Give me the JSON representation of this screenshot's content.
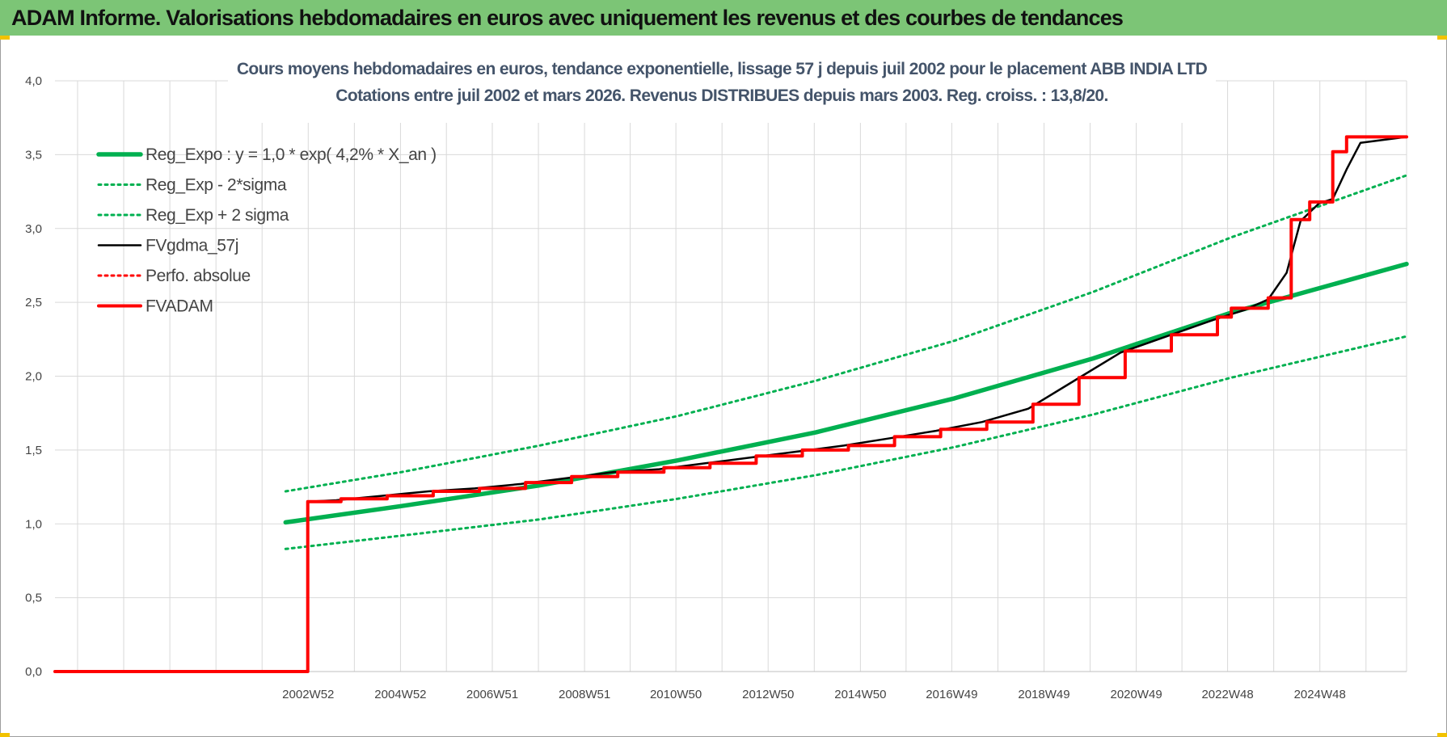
{
  "banner": {
    "title": "ADAM Informe. Valorisations hebdomadaires en euros avec uniquement les revenus et des courbes de tendances"
  },
  "colors": {
    "banner_bg": "#7cc576",
    "trend": "#00b050",
    "fvgdma": "#000000",
    "perfo": "#ff0000",
    "fvadam": "#ff0000"
  },
  "chart_data": {
    "type": "line",
    "title": "Cours moyens hebdomadaires en euros, tendance exponentielle, lissage 57 j depuis juil 2002 pour le placement ABB INDIA LTD",
    "subtitle": "Cotations entre juil 2002 et mars 2026. Revenus DISTRIBUES depuis mars 2003. Reg. croiss. : 13,8/20.",
    "xlabel": "",
    "ylabel": "",
    "ylim": [
      0,
      4
    ],
    "xlim": [
      1997.5,
      2026.8
    ],
    "y_ticks": [
      "0,0",
      "0,5",
      "1,0",
      "1,5",
      "2,0",
      "2,5",
      "3,0",
      "3,5",
      "4,0"
    ],
    "x_ticks": [
      {
        "x": 2002.99,
        "label": "2002W52"
      },
      {
        "x": 2004.99,
        "label": "2004W52"
      },
      {
        "x": 2006.98,
        "label": "2006W51"
      },
      {
        "x": 2008.98,
        "label": "2008W51"
      },
      {
        "x": 2010.96,
        "label": "2010W50"
      },
      {
        "x": 2012.96,
        "label": "2012W50"
      },
      {
        "x": 2014.96,
        "label": "2014W50"
      },
      {
        "x": 2016.94,
        "label": "2016W49"
      },
      {
        "x": 2018.94,
        "label": "2018W49"
      },
      {
        "x": 2020.94,
        "label": "2020W49"
      },
      {
        "x": 2022.92,
        "label": "2022W48"
      },
      {
        "x": 2024.92,
        "label": "2024W48"
      }
    ],
    "grid": true,
    "legend_position": "top-left",
    "series": [
      {
        "name": "Reg_Expo : y = 1,0 * exp( 4,2% *  X_an )",
        "style": "solid-thick",
        "color": "#00b050",
        "x": [
          2002.5,
          2005,
          2008,
          2011,
          2014,
          2017,
          2020,
          2023,
          2026.8
        ],
        "y": [
          1.01,
          1.12,
          1.26,
          1.43,
          1.62,
          1.85,
          2.12,
          2.43,
          2.76
        ]
      },
      {
        "name": "Reg_Exp - 2*sigma",
        "style": "dotted",
        "color": "#00b050",
        "x": [
          2002.5,
          2005,
          2008,
          2011,
          2014,
          2017,
          2020,
          2023,
          2026.8
        ],
        "y": [
          0.83,
          0.92,
          1.03,
          1.17,
          1.33,
          1.52,
          1.74,
          1.99,
          2.27
        ]
      },
      {
        "name": "Reg_Exp + 2 sigma",
        "style": "dotted",
        "color": "#00b050",
        "x": [
          2002.5,
          2005,
          2008,
          2011,
          2014,
          2017,
          2020,
          2023,
          2026.8
        ],
        "y": [
          1.22,
          1.35,
          1.53,
          1.73,
          1.97,
          2.24,
          2.57,
          2.94,
          3.36
        ]
      },
      {
        "name": "FVgdma_57j",
        "style": "solid",
        "color": "#000000",
        "x": [
          1997.5,
          2002.98,
          2002.99,
          2003.6,
          2004.6,
          2005.6,
          2006.6,
          2007.6,
          2008.6,
          2009.6,
          2010.6,
          2011.6,
          2012.6,
          2013.6,
          2014.6,
          2015.6,
          2016.6,
          2017.6,
          2018.6,
          2019.6,
          2020.6,
          2021.6,
          2022.6,
          2023.3,
          2023.8,
          2024.2,
          2024.5,
          2024.9,
          2025.2,
          2025.5,
          2025.8,
          2026.8
        ],
        "y": [
          0,
          0,
          1.15,
          1.16,
          1.19,
          1.22,
          1.24,
          1.27,
          1.31,
          1.35,
          1.37,
          1.41,
          1.45,
          1.49,
          1.53,
          1.58,
          1.63,
          1.69,
          1.78,
          1.97,
          2.16,
          2.27,
          2.38,
          2.45,
          2.52,
          2.7,
          3.05,
          3.17,
          3.2,
          3.4,
          3.58,
          3.62
        ]
      },
      {
        "name": "Perfo. absolue",
        "style": "dotted",
        "color": "#ff0000",
        "x": [],
        "y": []
      },
      {
        "name": "FVADAM",
        "style": "step-thick",
        "color": "#ff0000",
        "x": [
          1997.5,
          2002.98,
          2002.98,
          2003.7,
          2003.7,
          2004.7,
          2004.7,
          2005.7,
          2005.7,
          2006.7,
          2006.7,
          2007.7,
          2007.7,
          2008.7,
          2008.7,
          2009.7,
          2009.7,
          2010.7,
          2010.7,
          2011.7,
          2011.7,
          2012.7,
          2012.7,
          2013.7,
          2013.7,
          2014.7,
          2014.7,
          2015.7,
          2015.7,
          2016.7,
          2016.7,
          2017.7,
          2017.7,
          2018.7,
          2018.7,
          2019.7,
          2019.7,
          2020.7,
          2020.7,
          2021.7,
          2021.7,
          2022.7,
          2022.7,
          2023.0,
          2023.0,
          2023.8,
          2023.8,
          2024.3,
          2024.3,
          2024.7,
          2024.7,
          2025.2,
          2025.2,
          2025.5,
          2025.5,
          2026.8
        ],
        "y": [
          0,
          0,
          1.15,
          1.15,
          1.17,
          1.17,
          1.19,
          1.19,
          1.22,
          1.22,
          1.24,
          1.24,
          1.28,
          1.28,
          1.32,
          1.32,
          1.35,
          1.35,
          1.38,
          1.38,
          1.41,
          1.41,
          1.46,
          1.46,
          1.5,
          1.5,
          1.53,
          1.53,
          1.59,
          1.59,
          1.64,
          1.64,
          1.69,
          1.69,
          1.81,
          1.81,
          1.99,
          1.99,
          2.17,
          2.17,
          2.28,
          2.28,
          2.4,
          2.4,
          2.46,
          2.46,
          2.53,
          2.53,
          3.06,
          3.06,
          3.18,
          3.18,
          3.52,
          3.52,
          3.62,
          3.62
        ]
      }
    ]
  }
}
